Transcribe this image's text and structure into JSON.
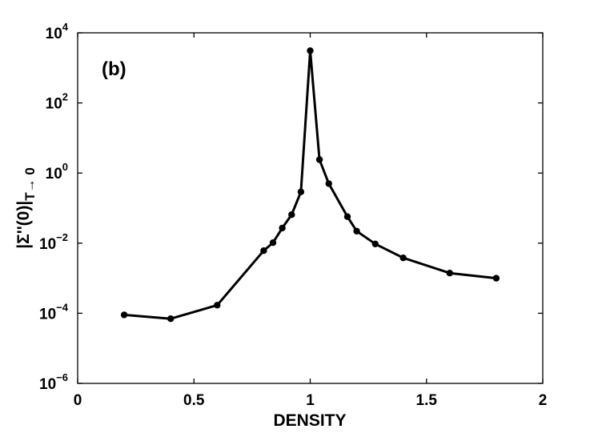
{
  "chart_data": {
    "type": "line",
    "panel_label": "(b)",
    "xlabel": "DENSITY",
    "ylabel": {
      "main": "|Σ''(0)|",
      "subscript": "T→ 0"
    },
    "xlim": [
      0,
      2
    ],
    "ylim": [
      1e-06,
      10000.0
    ],
    "yscale": "log",
    "grid": false,
    "legend": "none",
    "line_color": "#000000",
    "x_ticks": [
      {
        "value": 0,
        "label": "0"
      },
      {
        "value": 0.5,
        "label": "0.5"
      },
      {
        "value": 1,
        "label": "1"
      },
      {
        "value": 1.5,
        "label": "1.5"
      },
      {
        "value": 2,
        "label": "2"
      }
    ],
    "y_ticks": [
      {
        "value": 1e-06,
        "base": "10",
        "exp": "−6"
      },
      {
        "value": 0.0001,
        "base": "10",
        "exp": "−4"
      },
      {
        "value": 0.01,
        "base": "10",
        "exp": "−2"
      },
      {
        "value": 1,
        "base": "10",
        "exp": "0"
      },
      {
        "value": 100.0,
        "base": "10",
        "exp": "2"
      },
      {
        "value": 10000.0,
        "base": "10",
        "exp": "4"
      }
    ],
    "series": [
      {
        "x": [
          0.2,
          0.4,
          0.6,
          0.8,
          0.84,
          0.88,
          0.92,
          0.96,
          1.0,
          1.04,
          1.08,
          1.16,
          1.2,
          1.28,
          1.4,
          1.6,
          1.8
        ],
        "y": [
          9e-05,
          7e-05,
          0.00017,
          0.0061,
          0.0103,
          0.027,
          0.065,
          0.29,
          3100,
          2.4,
          0.5,
          0.057,
          0.022,
          0.0095,
          0.0038,
          0.0014,
          0.001
        ]
      }
    ]
  }
}
